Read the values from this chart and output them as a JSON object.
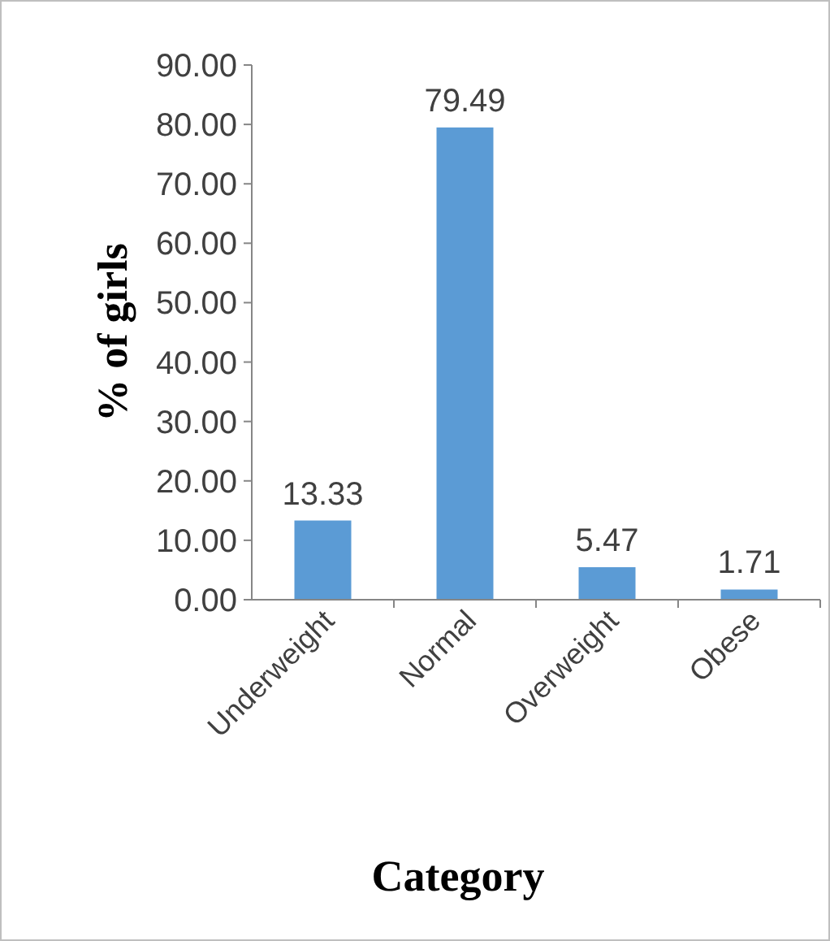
{
  "chart_data": {
    "type": "bar",
    "xlabel": "Category",
    "ylabel": "% of girls",
    "categories": [
      "Underweight",
      "Normal",
      "Overweight",
      "Obese"
    ],
    "values": [
      13.33,
      79.49,
      5.47,
      1.71
    ],
    "color": "#5b9bd5",
    "ylim": [
      0,
      90
    ],
    "yticks": [
      {
        "value": 0,
        "label": "0.00"
      },
      {
        "value": 10,
        "label": "10.00"
      },
      {
        "value": 20,
        "label": "20.00"
      },
      {
        "value": 30,
        "label": "30.00"
      },
      {
        "value": 40,
        "label": "40.00"
      },
      {
        "value": 50,
        "label": "50.00"
      },
      {
        "value": 60,
        "label": "60.00"
      },
      {
        "value": 70,
        "label": "70.00"
      },
      {
        "value": 80,
        "label": "80.00"
      },
      {
        "value": 90,
        "label": "90.00"
      }
    ],
    "data_labels": true
  }
}
